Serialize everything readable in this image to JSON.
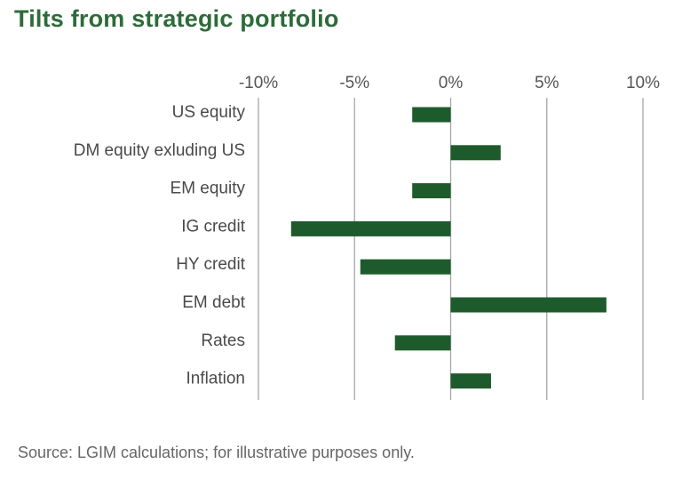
{
  "chart_data": {
    "type": "bar",
    "orientation": "horizontal",
    "title": "Tilts from strategic portfolio",
    "categories": [
      "US equity",
      "DM equity exluding US",
      "EM equity",
      "IG credit",
      "HY credit",
      "EM debt",
      "Rates",
      "Inflation"
    ],
    "values": [
      -2.0,
      2.6,
      -2.0,
      -8.3,
      -4.7,
      8.1,
      -2.9,
      2.1
    ],
    "value_unit": "%",
    "xlim": [
      -10,
      10
    ],
    "x_ticks": [
      -10,
      -5,
      0,
      5,
      10
    ],
    "x_tick_labels": [
      "-10%",
      "-5%",
      "0%",
      "5%",
      "10%"
    ],
    "x_axis_position": "top",
    "grid": true,
    "bar_color": "#1e5b2c",
    "title_color": "#2e6b3a",
    "source": "Source: LGIM calculations; for illustrative purposes only."
  }
}
